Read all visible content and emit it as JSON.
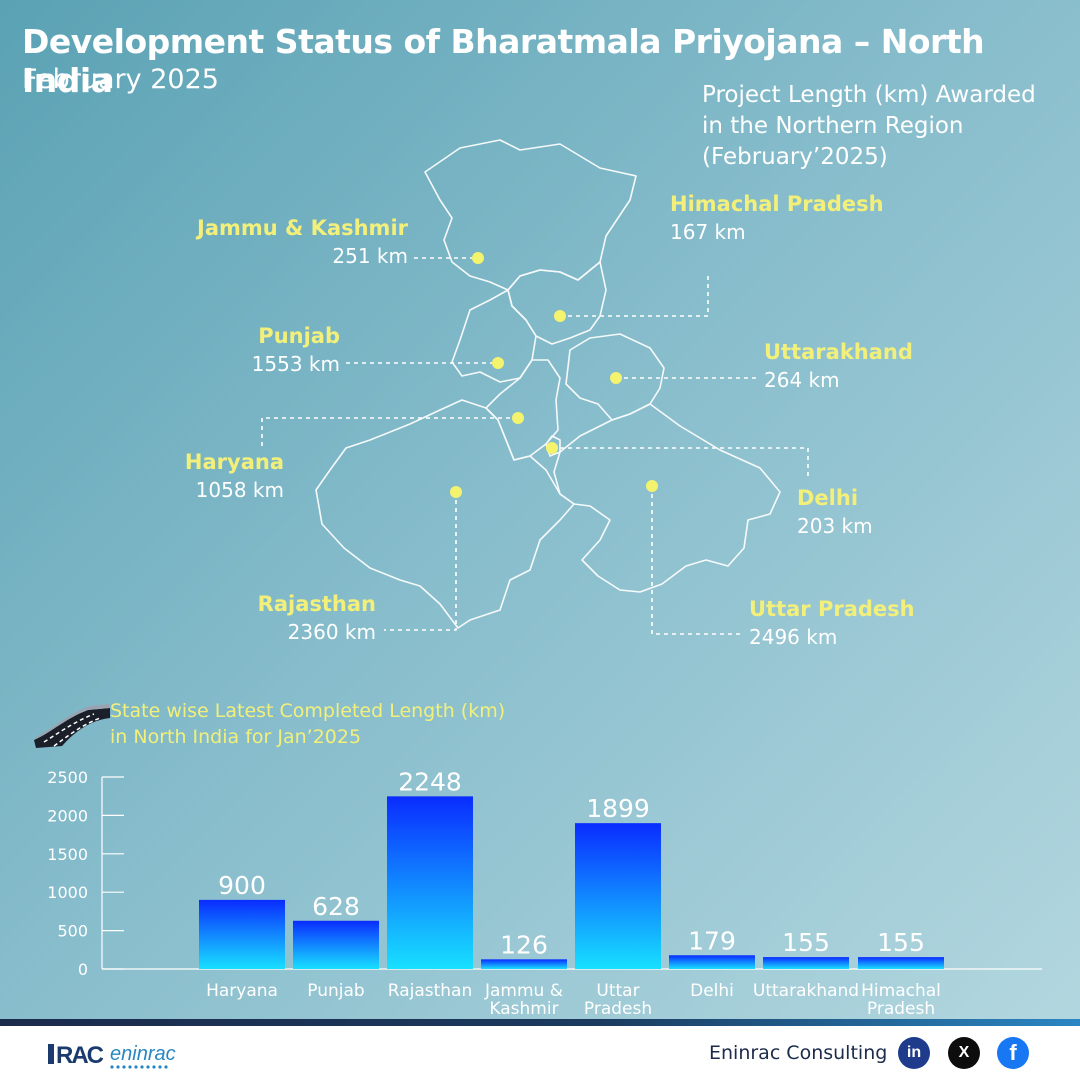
{
  "header": {
    "title": "Development Status of Bharatmala Priyojana – North India",
    "subtitle": "February 2025"
  },
  "map": {
    "caption_lines": [
      "Project  Length (km) Awarded",
      "in the Northern Region",
      "(February’2025)"
    ],
    "states": [
      {
        "name": "Jammu & Kashmir",
        "value": "251 km"
      },
      {
        "name": "Himachal Pradesh",
        "value": "167 km"
      },
      {
        "name": "Punjab",
        "value": "1553 km"
      },
      {
        "name": "Uttarakhand",
        "value": "264 km"
      },
      {
        "name": "Haryana",
        "value": "1058 km"
      },
      {
        "name": "Delhi",
        "value": "203 km"
      },
      {
        "name": "Rajasthan",
        "value": "2360 km"
      },
      {
        "name": "Uttar Pradesh",
        "value": "2496 km"
      }
    ],
    "marker_color": "#f4f36e"
  },
  "chart_heading": [
    "State wise Latest Completed Length (km)",
    "in North India for Jan’2025"
  ],
  "chart_data": {
    "type": "bar",
    "categories": [
      [
        "Haryana"
      ],
      [
        "Punjab"
      ],
      [
        "Rajasthan"
      ],
      [
        "Jammu &",
        "Kashmir"
      ],
      [
        "Uttar",
        "Pradesh"
      ],
      [
        "Delhi"
      ],
      [
        "Uttarakhand"
      ],
      [
        "Himachal",
        "Pradesh"
      ]
    ],
    "values": [
      900,
      628,
      2248,
      126,
      1899,
      179,
      155,
      155
    ],
    "data_labels": [
      "900",
      "628",
      "2248",
      "126",
      "1899",
      "179",
      "155",
      "155"
    ],
    "yticks": [
      0,
      500,
      1000,
      1500,
      2000,
      2500
    ],
    "ylim": [
      0,
      2500
    ],
    "bar_color_top": "#0a2cff",
    "bar_color_bottom": "#18e0ff"
  },
  "footer": {
    "logo_text": "RAC eninrac",
    "brand": "Eninrac Consulting",
    "social": {
      "linkedin": "in",
      "x": "X",
      "facebook": "f"
    }
  }
}
